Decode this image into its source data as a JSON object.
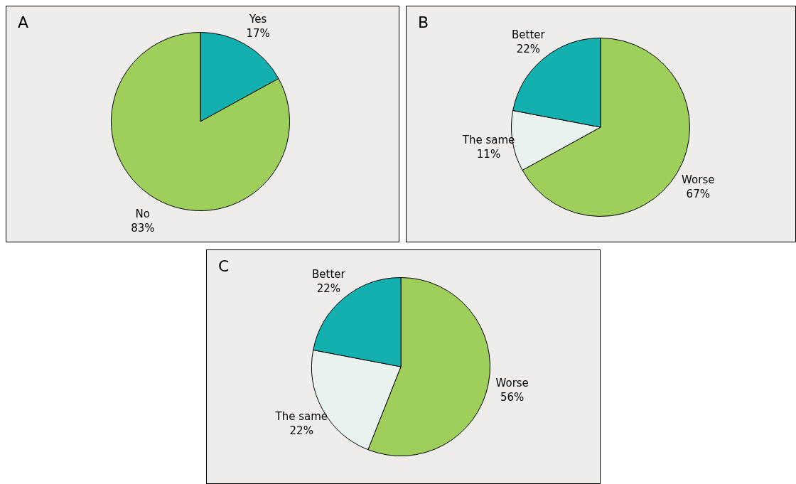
{
  "chart_data": [
    {
      "type": "pie",
      "title": "A",
      "categories": [
        "Yes",
        "No"
      ],
      "values": [
        17,
        83
      ],
      "colors": [
        "#14b0b0",
        "#9ecf5a"
      ],
      "value_labels": [
        "17%",
        "83%"
      ]
    },
    {
      "type": "pie",
      "title": "B",
      "categories": [
        "Worse",
        "The same",
        "Better"
      ],
      "values": [
        67,
        11,
        22
      ],
      "colors": [
        "#9ecf5a",
        "#eaf2f0",
        "#14b0b0"
      ],
      "value_labels": [
        "67%",
        "11%",
        "22%"
      ]
    },
    {
      "type": "pie",
      "title": "C",
      "categories": [
        "Worse",
        "The same",
        "Better"
      ],
      "values": [
        56,
        22,
        22
      ],
      "colors": [
        "#9ecf5a",
        "#eaf2f0",
        "#14b0b0"
      ],
      "value_labels": [
        "56%",
        "22%",
        "22%"
      ]
    }
  ]
}
